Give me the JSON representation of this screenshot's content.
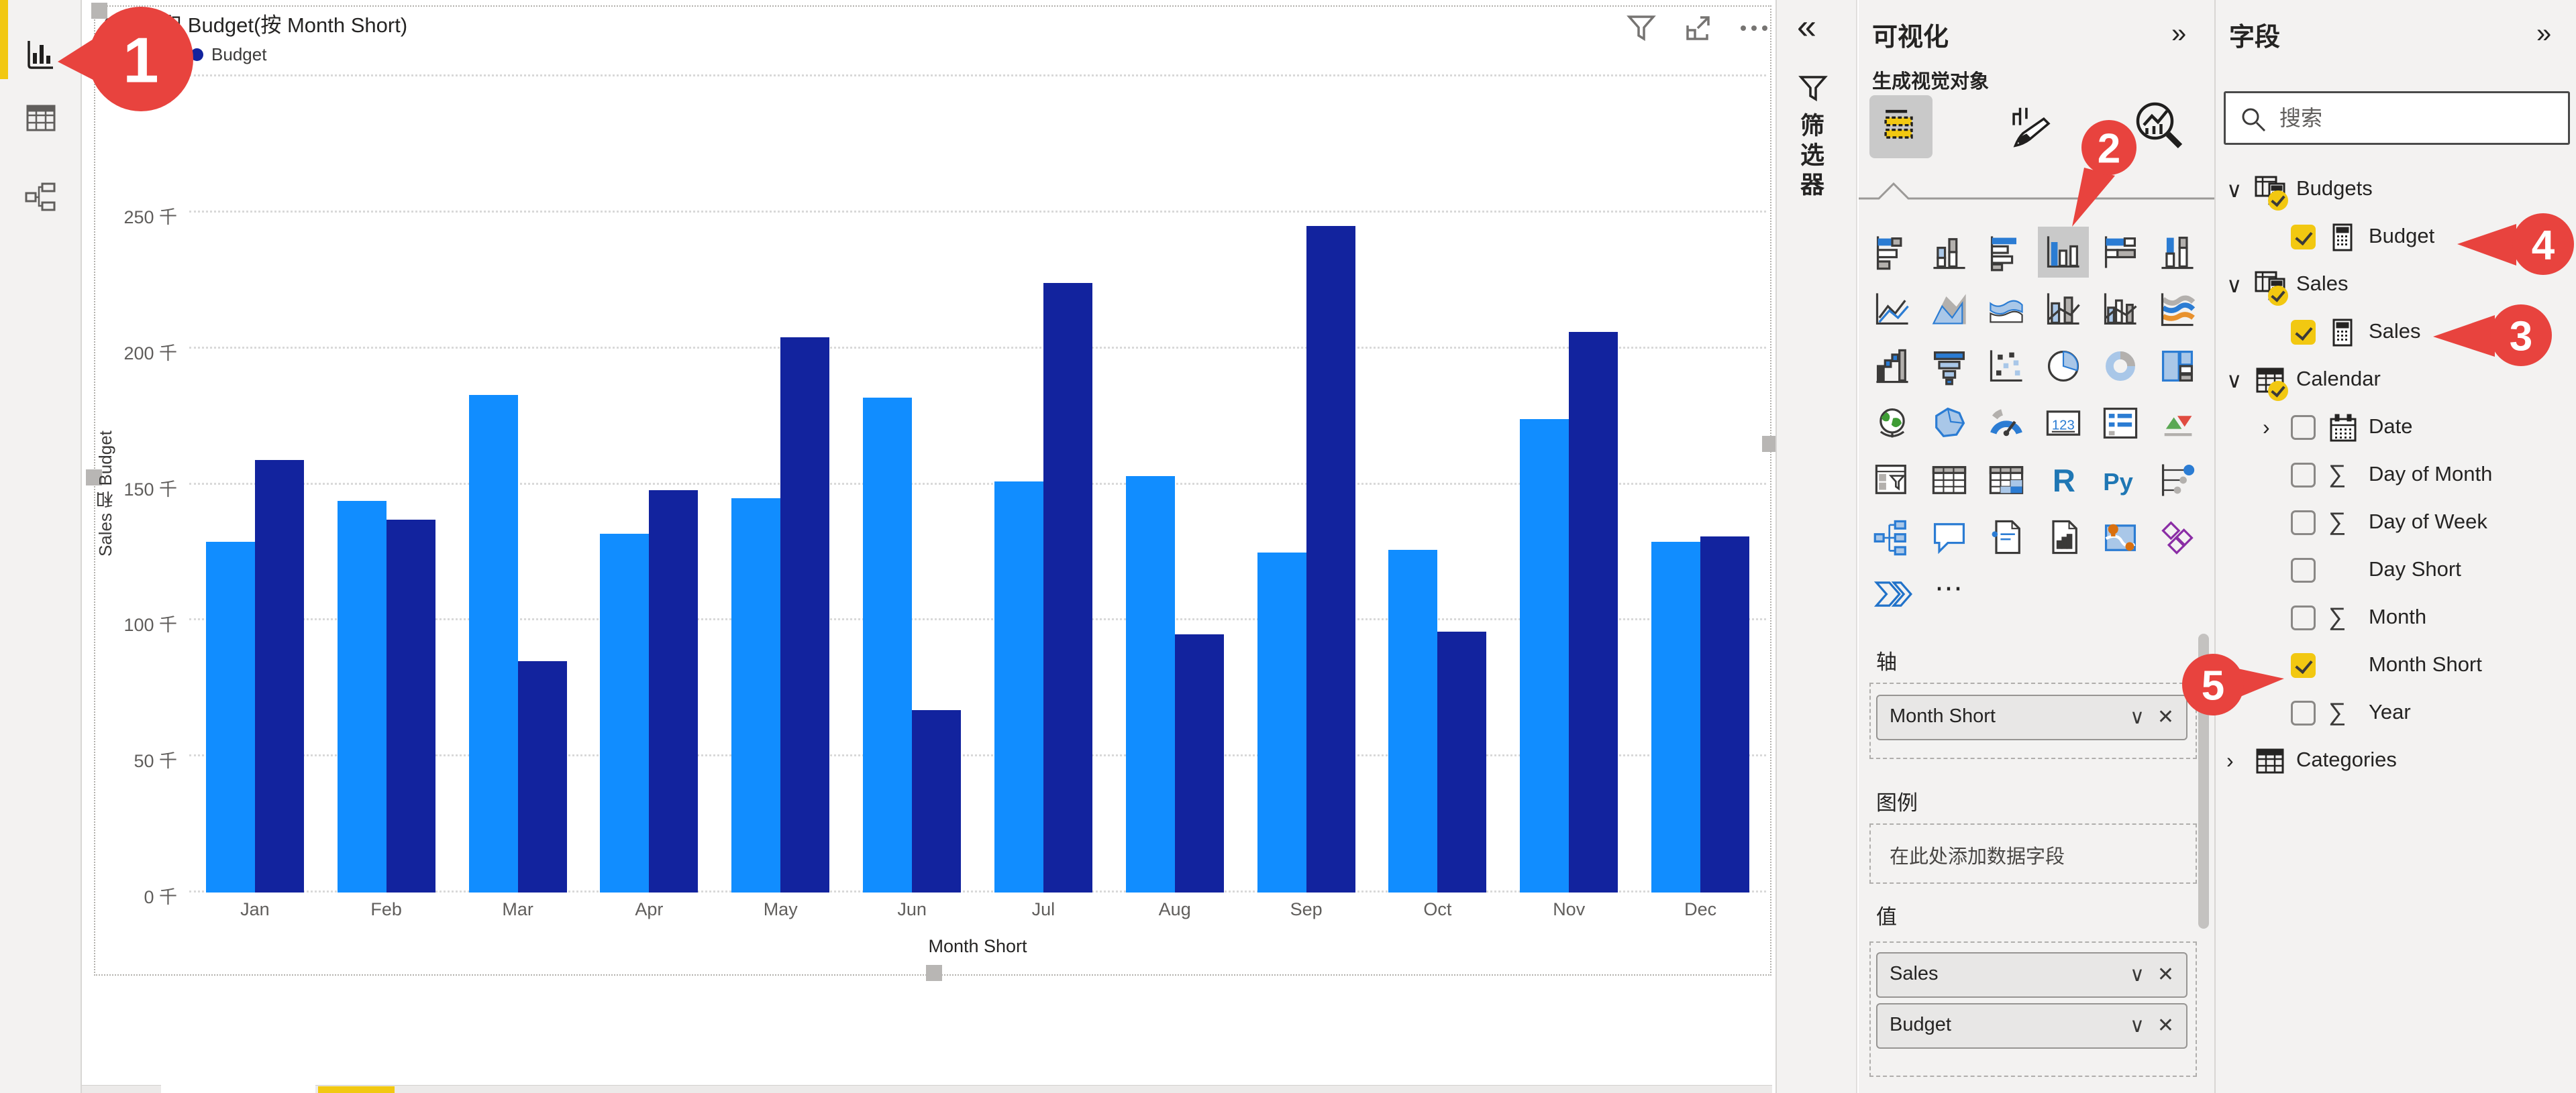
{
  "colors": {
    "accent_yellow": "#F2C811",
    "callout_red": "#E8433E",
    "sales_blue": "#118DFF",
    "budget_navy": "#12239E",
    "pane_background": "#F3F2F1"
  },
  "icons": {
    "collapse_left": "«",
    "collapse_right": "»",
    "dropdown": "∨",
    "remove": "✕",
    "sigma": "∑",
    "more": "⋯",
    "chevron_down": "∨",
    "chevron_right": "›"
  },
  "left_toolbar": {
    "items": [
      {
        "name": "report-view",
        "active": true
      },
      {
        "name": "data-view",
        "active": false
      },
      {
        "name": "model-view",
        "active": false
      }
    ]
  },
  "visual": {
    "title": "Sales 和 Budget(按 Month Short)",
    "toolbar_icons": [
      "filter",
      "focus-mode",
      "more-options"
    ],
    "selected": true
  },
  "chart_data": {
    "type": "bar",
    "subtype": "clustered-column",
    "title": "Sales 和 Budget(按 Month Short)",
    "categories": [
      "Jan",
      "Feb",
      "Mar",
      "Apr",
      "May",
      "Jun",
      "Jul",
      "Aug",
      "Sep",
      "Oct",
      "Nov",
      "Dec"
    ],
    "series": [
      {
        "name": "Sales",
        "color": "#118DFF",
        "values": [
          129,
          144,
          183,
          132,
          145,
          182,
          151,
          153,
          125,
          126,
          174,
          129
        ]
      },
      {
        "name": "Budget",
        "color": "#12239E",
        "values": [
          159,
          137,
          85,
          148,
          204,
          67,
          224,
          95,
          245,
          96,
          206,
          131
        ]
      }
    ],
    "unit": "千",
    "ylim": [
      0,
      300
    ],
    "y_ticks": [
      0,
      50,
      100,
      150,
      200,
      250,
      300
    ],
    "y_tick_suffix": " 千",
    "xlabel": "Month Short",
    "ylabel": "Sales 和 Budget",
    "legend_position": "top-left",
    "grid": "dotted-horizontal"
  },
  "filters_pane": {
    "collapsed": true,
    "vertical_label": "筛选器"
  },
  "viz_pane": {
    "header": "可视化",
    "subtitle": "生成视觉对象",
    "tabs": [
      {
        "name": "build-visual",
        "selected": true
      },
      {
        "name": "format-visual",
        "selected": false
      },
      {
        "name": "analytics",
        "selected": false
      }
    ],
    "visual_types": [
      {
        "name": "stacked-bar-chart"
      },
      {
        "name": "stacked-column-chart"
      },
      {
        "name": "clustered-bar-chart"
      },
      {
        "name": "clustered-column-chart",
        "selected": true
      },
      {
        "name": "100-stacked-bar-chart"
      },
      {
        "name": "100-stacked-column-chart"
      },
      {
        "name": "line-chart"
      },
      {
        "name": "area-chart"
      },
      {
        "name": "stacked-area-chart"
      },
      {
        "name": "line-and-stacked-column-chart"
      },
      {
        "name": "line-and-clustered-column-chart"
      },
      {
        "name": "ribbon-chart"
      },
      {
        "name": "waterfall-chart"
      },
      {
        "name": "funnel-chart"
      },
      {
        "name": "scatter-chart"
      },
      {
        "name": "pie-chart"
      },
      {
        "name": "donut-chart"
      },
      {
        "name": "treemap"
      },
      {
        "name": "map"
      },
      {
        "name": "filled-map"
      },
      {
        "name": "gauge"
      },
      {
        "name": "card"
      },
      {
        "name": "multi-row-card"
      },
      {
        "name": "kpi"
      },
      {
        "name": "slicer"
      },
      {
        "name": "table"
      },
      {
        "name": "matrix"
      },
      {
        "name": "r-script-visual"
      },
      {
        "name": "python-visual"
      },
      {
        "name": "key-influencers"
      },
      {
        "name": "decomposition-tree"
      },
      {
        "name": "qa-visual"
      },
      {
        "name": "smart-narrative"
      },
      {
        "name": "paginated-report"
      },
      {
        "name": "arcgis-map"
      },
      {
        "name": "power-apps"
      },
      {
        "name": "power-automate"
      },
      {
        "name": "more-options"
      }
    ],
    "wells": {
      "axis_label": "轴",
      "axis_fields": [
        {
          "name": "Month Short"
        }
      ],
      "legend_label": "图例",
      "legend_placeholder": "在此处添加数据字段",
      "values_label": "值",
      "value_fields": [
        {
          "name": "Sales"
        },
        {
          "name": "Budget"
        }
      ]
    }
  },
  "fields_pane": {
    "header": "字段",
    "search_placeholder": "搜索",
    "tree": [
      {
        "kind": "table",
        "label": "Budgets",
        "expanded": true,
        "checked": true,
        "icon": "measure-table"
      },
      {
        "kind": "field",
        "label": "Budget",
        "checked": true,
        "icon": "calculator"
      },
      {
        "kind": "table",
        "label": "Sales",
        "expanded": true,
        "checked": true,
        "icon": "measure-table"
      },
      {
        "kind": "field",
        "label": "Sales",
        "checked": true,
        "icon": "calculator"
      },
      {
        "kind": "table",
        "label": "Calendar",
        "expanded": true,
        "checked": true,
        "icon": "table"
      },
      {
        "kind": "field",
        "label": "Date",
        "checked": false,
        "icon": "calendar",
        "expandable": true
      },
      {
        "kind": "field",
        "label": "Day of Month",
        "checked": false,
        "icon": "sigma"
      },
      {
        "kind": "field",
        "label": "Day of Week",
        "checked": false,
        "icon": "sigma"
      },
      {
        "kind": "field",
        "label": "Day Short",
        "checked": false,
        "icon": "none"
      },
      {
        "kind": "field",
        "label": "Month",
        "checked": false,
        "icon": "sigma"
      },
      {
        "kind": "field",
        "label": "Month Short",
        "checked": true,
        "icon": "none"
      },
      {
        "kind": "field",
        "label": "Year",
        "checked": false,
        "icon": "sigma"
      },
      {
        "kind": "table",
        "label": "Categories",
        "expanded": false,
        "checked": false,
        "icon": "table"
      }
    ]
  },
  "callouts": [
    {
      "number": "1",
      "target": "report-view-button"
    },
    {
      "number": "2",
      "target": "clustered-column-chart-visual-type"
    },
    {
      "number": "3",
      "target": "sales-field"
    },
    {
      "number": "4",
      "target": "budget-field"
    },
    {
      "number": "5",
      "target": "month-short-checkbox"
    }
  ]
}
